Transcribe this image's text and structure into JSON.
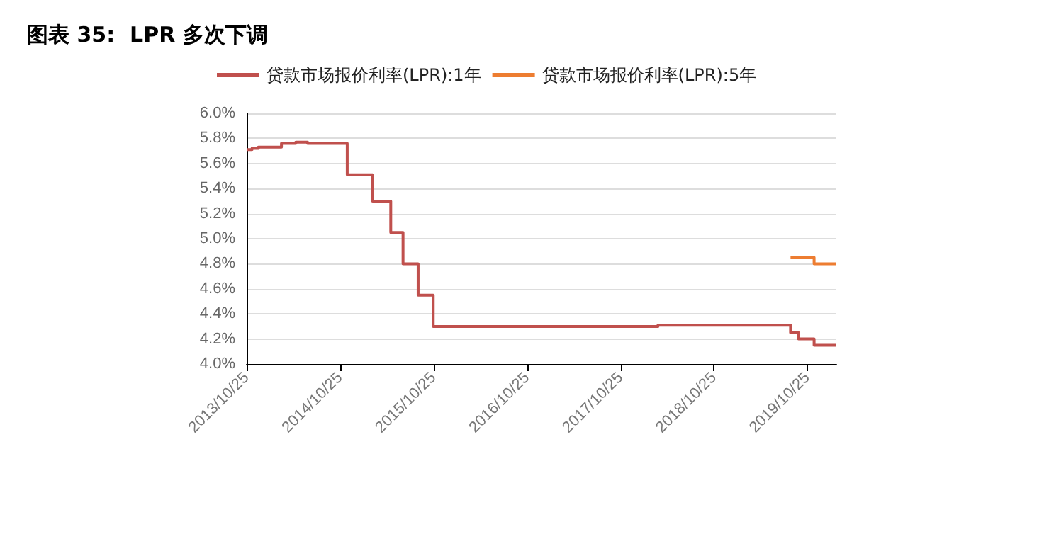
{
  "chart_data": {
    "type": "step",
    "title": "图表 35:  LPR 多次下调",
    "series": [
      {
        "name": "贷款市场报价利率(LPR):1年",
        "color": "#c0504d",
        "x": [
          "2013-10-25",
          "2013-11-15",
          "2013-12-10",
          "2014-03-10",
          "2014-05-05",
          "2014-06-20",
          "2014-11-22",
          "2015-03-01",
          "2015-05-11",
          "2015-06-28",
          "2015-08-26",
          "2015-10-24",
          "2018-03-20",
          "2019-08-20",
          "2019-09-20",
          "2019-11-20",
          "2020-02-15"
        ],
        "values": [
          5.71,
          5.72,
          5.73,
          5.76,
          5.77,
          5.76,
          5.51,
          5.3,
          5.05,
          4.8,
          4.55,
          4.3,
          4.31,
          4.25,
          4.2,
          4.15,
          4.15
        ]
      },
      {
        "name": "贷款市场报价利率(LPR):5年",
        "color": "#ed7d31",
        "x": [
          "2019-08-20",
          "2019-09-20",
          "2019-11-20",
          "2020-02-15"
        ],
        "values": [
          4.85,
          4.85,
          4.8,
          4.8
        ]
      }
    ],
    "xlim": [
      "2013-10-25",
      "2020-02-15"
    ],
    "xticks": [
      {
        "value": "2013-10-25",
        "label": "2013/10/25"
      },
      {
        "value": "2014-10-25",
        "label": "2014/10/25"
      },
      {
        "value": "2015-10-25",
        "label": "2015/10/25"
      },
      {
        "value": "2016-10-25",
        "label": "2016/10/25"
      },
      {
        "value": "2017-10-25",
        "label": "2017/10/25"
      },
      {
        "value": "2018-10-25",
        "label": "2018/10/25"
      },
      {
        "value": "2019-10-25",
        "label": "2019/10/25"
      }
    ],
    "ylim": [
      4.0,
      6.0
    ],
    "yticks": [
      {
        "value": 4.0,
        "label": "4.0%"
      },
      {
        "value": 4.2,
        "label": "4.2%"
      },
      {
        "value": 4.4,
        "label": "4.4%"
      },
      {
        "value": 4.6,
        "label": "4.6%"
      },
      {
        "value": 4.8,
        "label": "4.8%"
      },
      {
        "value": 5.0,
        "label": "5.0%"
      },
      {
        "value": 5.2,
        "label": "5.2%"
      },
      {
        "value": 5.4,
        "label": "5.4%"
      },
      {
        "value": 5.6,
        "label": "5.6%"
      },
      {
        "value": 5.8,
        "label": "5.8%"
      },
      {
        "value": 6.0,
        "label": "6.0%"
      }
    ],
    "grid": "y",
    "legend": "top",
    "marker": "none",
    "line_style": "solid"
  }
}
